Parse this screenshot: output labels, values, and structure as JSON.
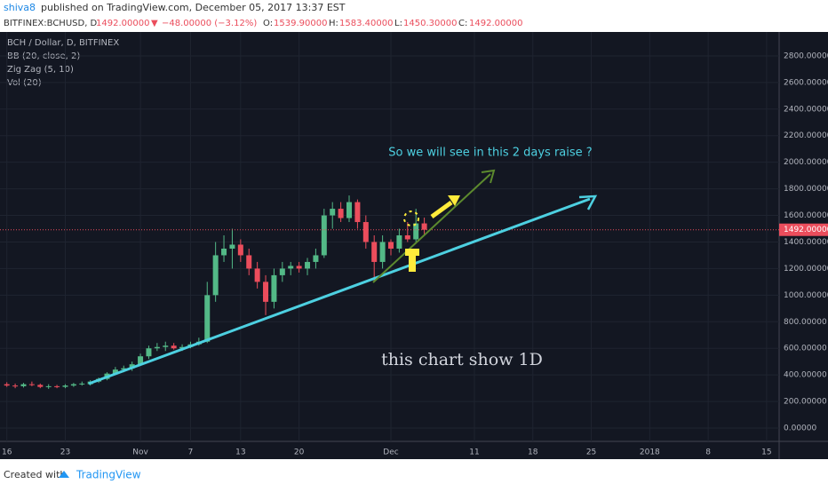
{
  "header": {
    "author": "shiva8",
    "published": "published on TradingView.com, December 05, 2017 13:37 EST",
    "symbol": "BITFINEX:BCHUSD, D",
    "last": "1492.00000",
    "arrow": "▼",
    "change": "−48.00000 (−3.12%)",
    "o_label": "O:",
    "o": "1539.90000",
    "h_label": "H:",
    "h": "1583.40000",
    "l_label": "L:",
    "l": "1450.30000",
    "c_label": "C:",
    "c": "1492.00000"
  },
  "legend": [
    "BCH / Dollar, D, BITFINEX",
    "BB (20, close, 2)",
    "Zig Zag (5, 10)",
    "Vol (20)"
  ],
  "footer": {
    "created": "Created with",
    "brand": "TradingView"
  },
  "chart_data": {
    "type": "candlestick",
    "annotations": [
      "So we will see in this 2 days raise ?",
      "this chart show 1D"
    ],
    "last_price": {
      "value": 1492,
      "label": "1492.00000"
    },
    "up_color": "#53b987",
    "down_color": "#eb4d5c",
    "categories": [
      "16",
      null,
      null,
      null,
      null,
      null,
      null,
      "23",
      null,
      null,
      null,
      null,
      null,
      null,
      null,
      null,
      "Nov",
      null,
      null,
      null,
      null,
      null,
      "7",
      null,
      null,
      null,
      null,
      null,
      "13",
      null,
      null,
      null,
      null,
      null,
      null,
      "20",
      null,
      null,
      null,
      null,
      null,
      null,
      null,
      null,
      null,
      null,
      "Dec",
      null,
      null,
      null,
      null,
      null,
      null,
      null,
      null,
      null,
      "11",
      null,
      null,
      null,
      null,
      null,
      null,
      "18",
      null,
      null,
      null,
      null,
      null,
      null,
      "25",
      null,
      null,
      null,
      null,
      null,
      null,
      "2018",
      null,
      null,
      null,
      null,
      null,
      null,
      "8",
      null,
      null,
      null,
      null,
      null,
      null,
      "15",
      null
    ],
    "open": [
      330,
      320,
      315,
      330,
      325,
      310,
      315,
      310,
      320,
      330,
      330,
      350,
      370,
      410,
      440,
      450,
      480,
      540,
      600,
      610,
      620,
      600,
      610,
      630,
      650,
      1000,
      1300,
      1350,
      1380,
      1300,
      1200,
      1100,
      950,
      1150,
      1200,
      1220,
      1200,
      1250,
      1300,
      1600,
      1650,
      1580,
      1700,
      1550,
      1400,
      1250,
      1400,
      1350,
      1450,
      1420,
      1539.9,
      null,
      null,
      null,
      null,
      null,
      null,
      null,
      null,
      null,
      null,
      null,
      null,
      null,
      null,
      null,
      null,
      null,
      null,
      null,
      null,
      null,
      null,
      null,
      null,
      null,
      null,
      null,
      null,
      null,
      null,
      null,
      null,
      null,
      null,
      null,
      null,
      null,
      null,
      null,
      null,
      null,
      null
    ],
    "high": [
      345,
      335,
      340,
      350,
      335,
      330,
      325,
      330,
      340,
      350,
      360,
      380,
      420,
      460,
      470,
      500,
      560,
      620,
      640,
      650,
      640,
      630,
      650,
      680,
      1100,
      1400,
      1450,
      1500,
      1420,
      1350,
      1250,
      1150,
      1200,
      1250,
      1250,
      1250,
      1280,
      1350,
      1650,
      1700,
      1700,
      1750,
      1720,
      1600,
      1450,
      1450,
      1420,
      1500,
      1550,
      1650,
      1583.4,
      null,
      null,
      null,
      null,
      null,
      null,
      null,
      null,
      null,
      null,
      null,
      null,
      null,
      null,
      null,
      null,
      null,
      null,
      null,
      null,
      null,
      null,
      null,
      null,
      null,
      null,
      null,
      null,
      null,
      null,
      null,
      null,
      null,
      null,
      null,
      null,
      null,
      null,
      null,
      null,
      null,
      null
    ],
    "low": [
      310,
      300,
      305,
      315,
      300,
      295,
      300,
      300,
      310,
      320,
      320,
      340,
      360,
      400,
      420,
      430,
      470,
      520,
      580,
      580,
      590,
      580,
      600,
      620,
      640,
      950,
      1250,
      1200,
      1250,
      1150,
      1050,
      850,
      900,
      1100,
      1150,
      1170,
      1150,
      1200,
      1280,
      1500,
      1550,
      1550,
      1500,
      1350,
      1100,
      1200,
      1300,
      1320,
      1400,
      1400,
      1450.3,
      null,
      null,
      null,
      null,
      null,
      null,
      null,
      null,
      null,
      null,
      null,
      null,
      null,
      null,
      null,
      null,
      null,
      null,
      null,
      null,
      null,
      null,
      null,
      null,
      null,
      null,
      null,
      null,
      null,
      null,
      null,
      null,
      null,
      null,
      null,
      null,
      null,
      null,
      null,
      null,
      null,
      null
    ],
    "close": [
      320,
      315,
      330,
      325,
      310,
      315,
      310,
      320,
      330,
      335,
      350,
      370,
      410,
      440,
      450,
      480,
      540,
      600,
      610,
      620,
      600,
      610,
      630,
      650,
      1000,
      1300,
      1350,
      1380,
      1300,
      1200,
      1100,
      950,
      1150,
      1200,
      1220,
      1200,
      1250,
      1300,
      1600,
      1650,
      1580,
      1700,
      1550,
      1400,
      1250,
      1400,
      1350,
      1450,
      1420,
      1540,
      1492,
      null,
      null,
      null,
      null,
      null,
      null,
      null,
      null,
      null,
      null,
      null,
      null,
      null,
      null,
      null,
      null,
      null,
      null,
      null,
      null,
      null,
      null,
      null,
      null,
      null,
      null,
      null,
      null,
      null,
      null,
      null,
      null,
      null,
      null,
      null,
      null,
      null,
      null,
      null,
      null,
      null,
      null
    ],
    "ylim": [
      -100,
      2980
    ],
    "yticks": [
      {
        "value": 0,
        "label": "0.00000"
      },
      {
        "value": 200,
        "label": "200.00000"
      },
      {
        "value": 400,
        "label": "400.00000"
      },
      {
        "value": 600,
        "label": "600.00000"
      },
      {
        "value": 800,
        "label": "800.00000"
      },
      {
        "value": 1000,
        "label": "1000.00000"
      },
      {
        "value": 1200,
        "label": "1200.00000"
      },
      {
        "value": 1400,
        "label": "1400.00000"
      },
      {
        "value": 1600,
        "label": "1600.00000"
      },
      {
        "value": 1800,
        "label": "1800.00000"
      },
      {
        "value": 2000,
        "label": "2000.00000"
      },
      {
        "value": 2200,
        "label": "2200.00000"
      },
      {
        "value": 2400,
        "label": "2400.00000"
      },
      {
        "value": 2600,
        "label": "2600.00000"
      },
      {
        "value": 2800,
        "label": "2800.00000"
      }
    ],
    "grid": true
  }
}
